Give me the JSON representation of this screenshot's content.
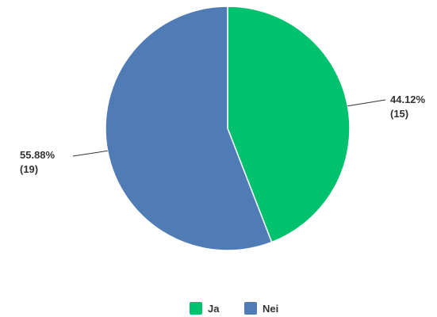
{
  "chart_data": {
    "type": "pie",
    "start_angle_deg": 0,
    "direction": "clockwise",
    "slices": [
      {
        "name": "Ja",
        "value": 15,
        "percent_label": "44.12%",
        "count_label": "(15)",
        "color": "#00c16e"
      },
      {
        "name": "Nei",
        "value": 19,
        "percent_label": "55.88%",
        "count_label": "(19)",
        "color": "#507cb6"
      }
    ],
    "legend_position": "bottom-center",
    "border_color": "#ffffff",
    "leader_line_color": "#333333"
  }
}
